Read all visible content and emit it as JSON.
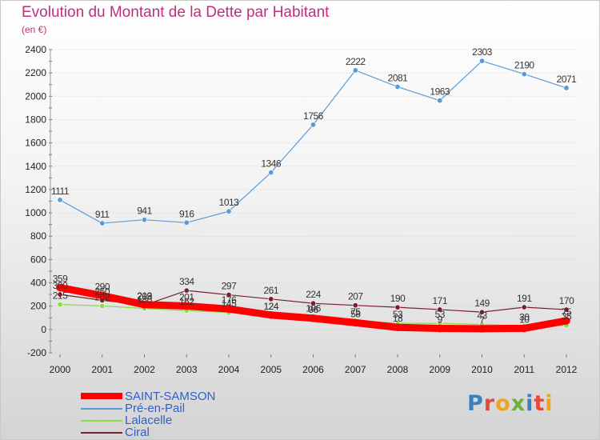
{
  "title": "Evolution du Montant de la Dette par Habitant",
  "unit": "(en €)",
  "brand": {
    "text": "Proxiti",
    "letter_colors": [
      "#3a7fc1",
      "#e8483b",
      "#f2a31b",
      "#6ab23c",
      "#3a7fc1",
      "#e8483b",
      "#f2a31b"
    ]
  },
  "chart_data": {
    "type": "line",
    "title": "Evolution du Montant de la Dette par Habitant",
    "subtitle": "(en €)",
    "xlabel": "",
    "ylabel": "",
    "x": [
      "2000",
      "2001",
      "2002",
      "2003",
      "2004",
      "2005",
      "2006",
      "2007",
      "2008",
      "2009",
      "2010",
      "2011",
      "2012"
    ],
    "ylim": [
      -200,
      2400
    ],
    "yticks": [
      -200,
      0,
      200,
      400,
      600,
      800,
      1000,
      1200,
      1400,
      1600,
      1800,
      2000,
      2200,
      2400
    ],
    "grid": "dotted horizontal lines",
    "legend_position": "bottom-left",
    "series": [
      {
        "name": "SAINT-SAMSON",
        "color": "#ff0000",
        "style": "thick",
        "values": [
          359,
          290,
          213,
          201,
          176,
          124,
          96,
          58,
          18,
          9,
          7,
          10,
          75
        ]
      },
      {
        "name": "Pré-en-Pail",
        "color": "#5b9bd5",
        "style": "thin",
        "values": [
          1111,
          911,
          941,
          916,
          1013,
          1346,
          1756,
          2222,
          2081,
          1963,
          2303,
          2190,
          2071
        ]
      },
      {
        "name": "Lalacelle",
        "color": "#88dd44",
        "style": "thin",
        "values": [
          215,
          202,
          180,
          162,
          145,
          124,
          106,
          75,
          53,
          53,
          43,
          30,
          35
        ]
      },
      {
        "name": "Ciral",
        "color": "#7a1f2b",
        "style": "thin",
        "values": [
          300,
          250,
          209,
          334,
          297,
          261,
          224,
          207,
          190,
          171,
          149,
          191,
          170
        ]
      }
    ]
  }
}
